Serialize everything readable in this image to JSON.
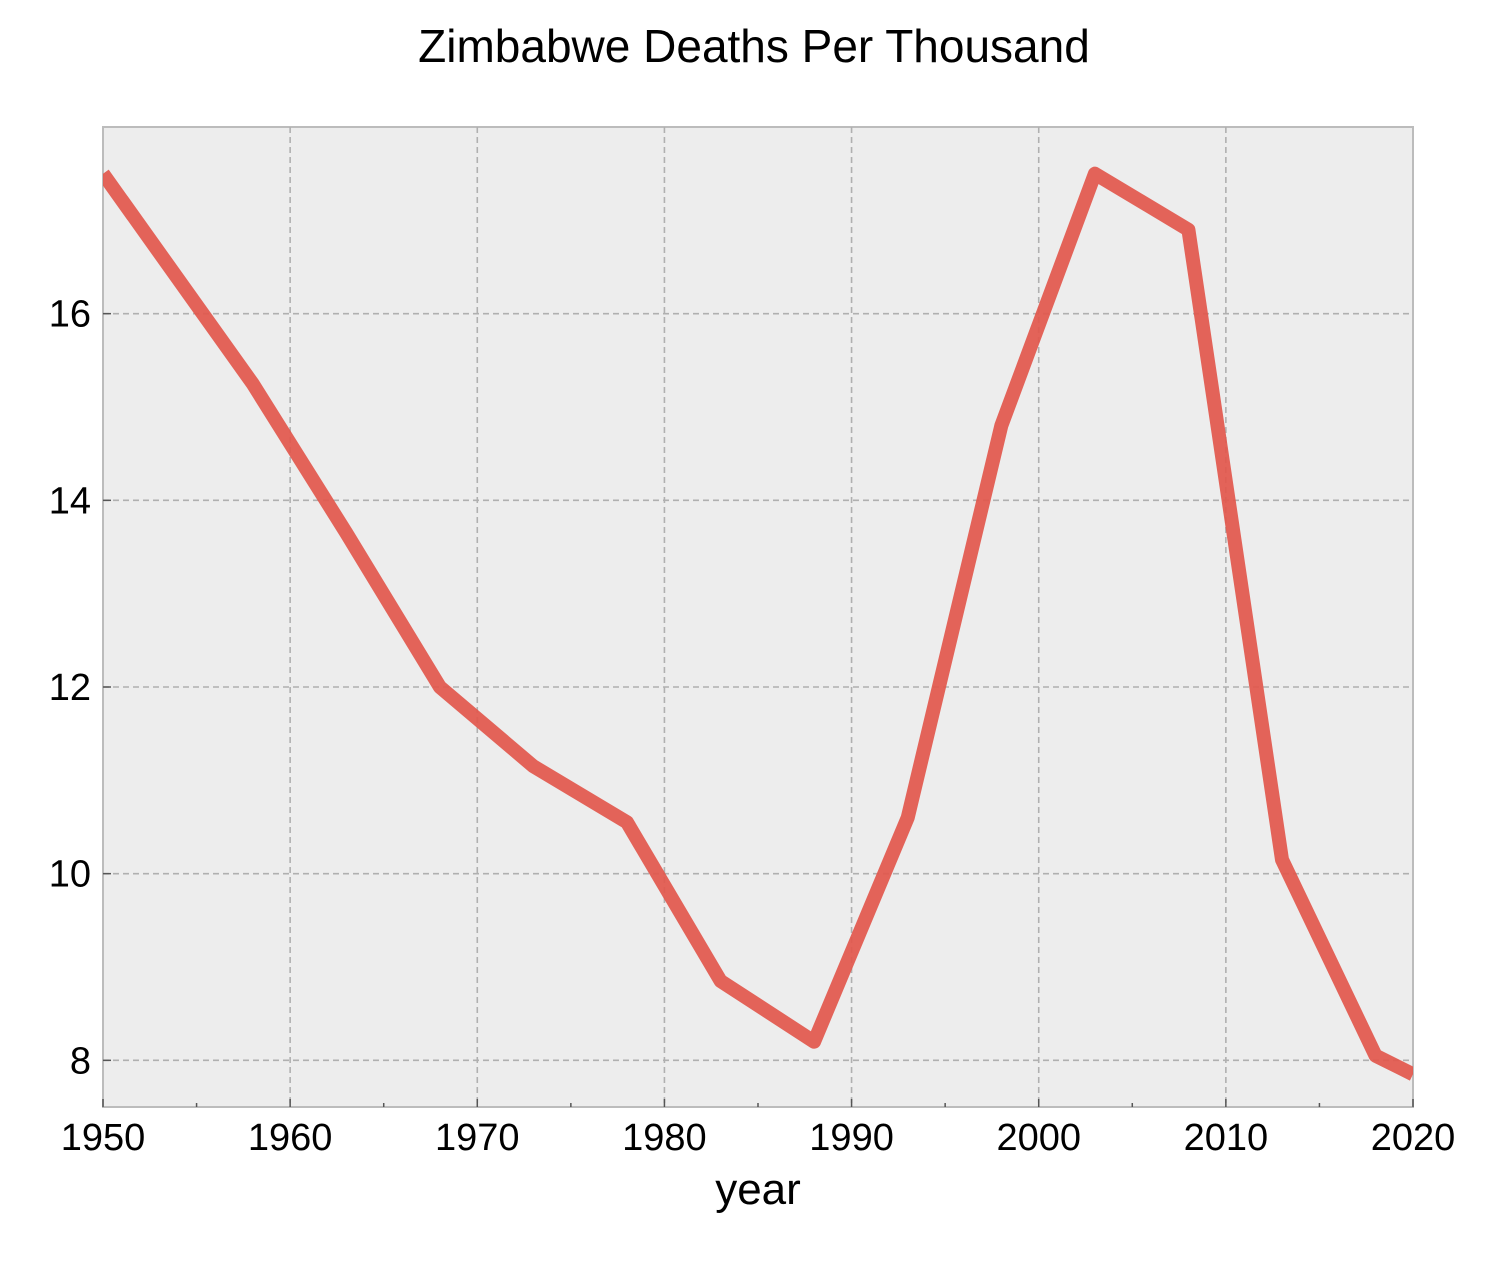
{
  "chart_data": {
    "type": "line",
    "title": "Zimbabwe Deaths Per Thousand",
    "xlabel": "year",
    "ylabel": "",
    "xlim": [
      1950,
      2020
    ],
    "ylim": [
      7.5,
      18.0
    ],
    "xticks": [
      1950,
      1960,
      1970,
      1980,
      1990,
      2000,
      2010,
      2020
    ],
    "xtick_labels": [
      "1950",
      "1960",
      "1970",
      "1980",
      "1990",
      "2000",
      "2010",
      "2020"
    ],
    "yticks": [
      8,
      10,
      12,
      14,
      16
    ],
    "ytick_labels": [
      "8",
      "10",
      "12",
      "14",
      "16"
    ],
    "minor_xticks": [
      1955,
      1965,
      1975,
      1985,
      1995,
      2005,
      2015
    ],
    "grid": true,
    "series": [
      {
        "color": "#e2574c",
        "x": [
          1950,
          1958,
          1963,
          1968,
          1973,
          1978,
          1983,
          1988,
          1993,
          1998,
          2003,
          2008,
          2013,
          2018,
          2020
        ],
        "y": [
          17.5,
          15.25,
          13.65,
          12.0,
          11.15,
          10.55,
          8.85,
          8.2,
          10.6,
          14.8,
          17.5,
          16.9,
          10.15,
          8.05,
          7.85
        ]
      }
    ]
  }
}
